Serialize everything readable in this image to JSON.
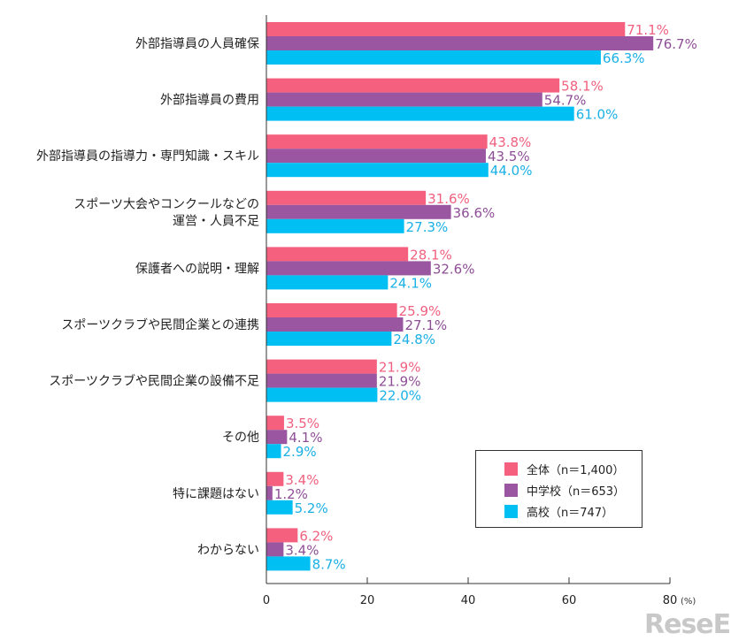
{
  "chart_data": {
    "type": "bar",
    "orientation": "horizontal",
    "categories": [
      [
        "外部指導員の人員確保"
      ],
      [
        "外部指導員の費用"
      ],
      [
        "外部指導員の指導力・専門知識・スキル"
      ],
      [
        "スポーツ大会やコンクールなどの",
        "運営・人員不足"
      ],
      [
        "保護者への説明・理解"
      ],
      [
        "スポーツクラブや民間企業との連携"
      ],
      [
        "スポーツクラブや民間企業の設備不足"
      ],
      [
        "その他"
      ],
      [
        "特に課題はない"
      ],
      [
        "わからない"
      ]
    ],
    "series": [
      {
        "name": "全体（n＝1,400）",
        "color": "#f5607f",
        "label_color": "#f0607f",
        "values": [
          71.1,
          58.1,
          43.8,
          31.6,
          28.1,
          25.9,
          21.9,
          3.5,
          3.4,
          6.2
        ]
      },
      {
        "name": "中学校（n＝653）",
        "color": "#9a56a0",
        "label_color": "#8e4e96",
        "values": [
          76.7,
          54.7,
          43.5,
          36.6,
          32.6,
          27.1,
          21.9,
          4.1,
          1.2,
          3.4
        ]
      },
      {
        "name": "高校（n＝747）",
        "color": "#00bff3",
        "label_color": "#1ab0e6",
        "values": [
          66.3,
          61.0,
          44.0,
          27.3,
          24.1,
          24.8,
          22.0,
          2.9,
          5.2,
          8.7
        ]
      }
    ],
    "data_labels": [
      [
        "71.1%",
        "58.1%",
        "43.8%",
        "31.6%",
        "28.1%",
        "25.9%",
        "21.9%",
        "3.5%",
        "3.4%",
        "6.2%"
      ],
      [
        "76.7%",
        "54.7%",
        "43.5%",
        "36.6%",
        "32.6%",
        "27.1%",
        "21.9%",
        "4.1%",
        "1.2%",
        "3.4%"
      ],
      [
        "66.3%",
        "61.0%",
        "44.0%",
        "27.3%",
        "24.1%",
        "24.8%",
        "22.0%",
        "2.9%",
        "5.2%",
        "8.7%"
      ]
    ],
    "xlim": [
      0,
      80
    ],
    "xticks": [
      "0",
      "20",
      "40",
      "60",
      "80"
    ],
    "xunit": "(%)",
    "grid": false,
    "legend_position": "bottom-right"
  },
  "watermark": "ReseEd"
}
